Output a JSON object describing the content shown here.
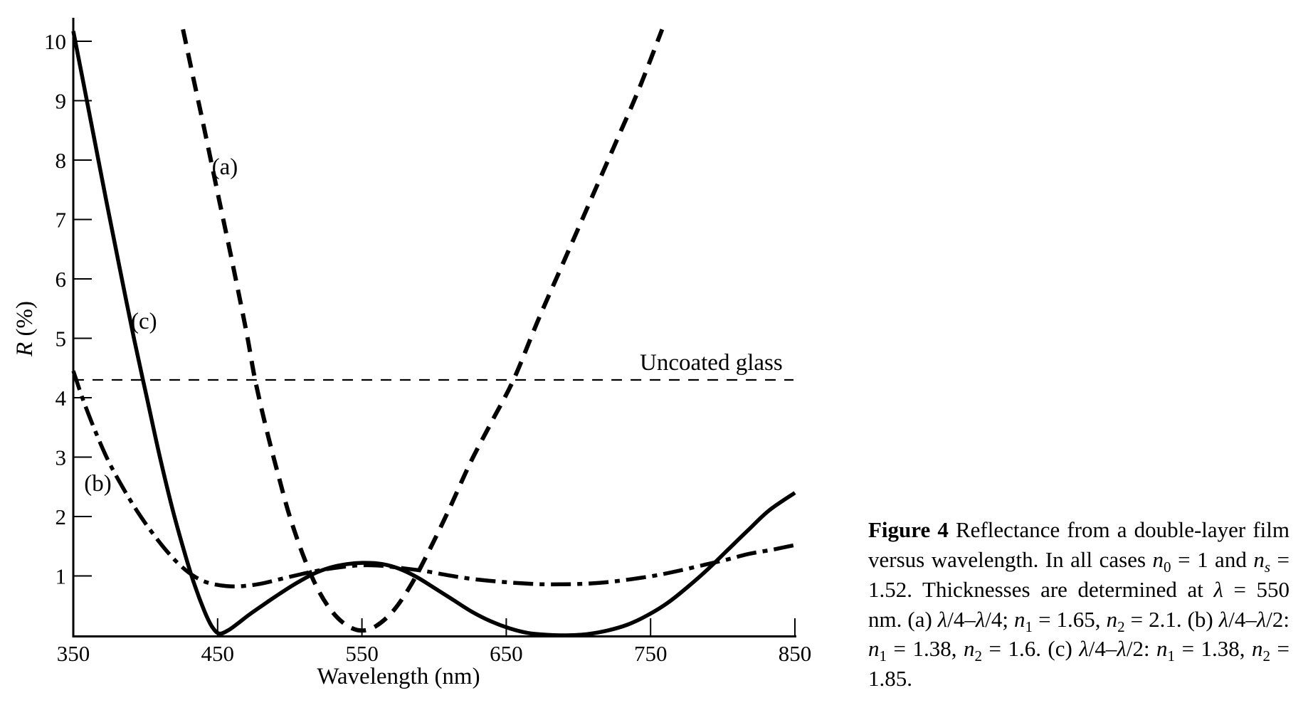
{
  "figure": {
    "caption_segments": [
      {
        "t": "Figure 4",
        "b": 1
      },
      {
        "t": "  Reflectance from a double-layer film versus wavelength. In all cases "
      },
      {
        "t": "n",
        "i": 1
      },
      {
        "t": "0",
        "sub": 1
      },
      {
        "t": " = 1 and "
      },
      {
        "t": "n",
        "i": 1
      },
      {
        "t": "s",
        "sub": 1,
        "i": 1
      },
      {
        "t": " = 1.52. Thicknesses are determined at "
      },
      {
        "t": "λ",
        "i": 1
      },
      {
        "t": " = 550 nm.  (a)  "
      },
      {
        "t": "λ",
        "i": 1
      },
      {
        "t": "/4–"
      },
      {
        "t": "λ",
        "i": 1
      },
      {
        "t": "/4; "
      },
      {
        "t": "n",
        "i": 1
      },
      {
        "t": "1",
        "sub": 1
      },
      {
        "t": " = 1.65, "
      },
      {
        "t": "n",
        "i": 1
      },
      {
        "t": "2",
        "sub": 1
      },
      {
        "t": " = 2.1. (b) "
      },
      {
        "t": "λ",
        "i": 1
      },
      {
        "t": "/4–"
      },
      {
        "t": "λ",
        "i": 1
      },
      {
        "t": "/2: "
      },
      {
        "t": "n",
        "i": 1
      },
      {
        "t": "1",
        "sub": 1
      },
      {
        "t": " = 1.38, "
      },
      {
        "t": "n",
        "i": 1
      },
      {
        "t": "2",
        "sub": 1
      },
      {
        "t": " = 1.6. (c) "
      },
      {
        "t": "λ",
        "i": 1
      },
      {
        "t": "/4–"
      },
      {
        "t": "λ",
        "i": 1
      },
      {
        "t": "/2: "
      },
      {
        "t": "n",
        "i": 1
      },
      {
        "t": "1",
        "sub": 1
      },
      {
        "t": " = 1.38, "
      },
      {
        "t": "n",
        "i": 1
      },
      {
        "t": "2",
        "sub": 1
      },
      {
        "t": " = 1.85."
      }
    ]
  },
  "colors": {
    "ink": "#000000",
    "background": "#ffffff"
  },
  "chart_data": {
    "type": "line",
    "title": "",
    "xlabel": "Wavelength (nm)",
    "ylabel_symbol": "R",
    "ylabel_unit": " (%)",
    "xlim": [
      350,
      850
    ],
    "ylim": [
      0,
      10.4
    ],
    "x_ticks": [
      350,
      450,
      550,
      650,
      750,
      850
    ],
    "y_ticks": [
      1,
      2,
      3,
      4,
      5,
      6,
      7,
      8,
      9,
      10
    ],
    "grid": false,
    "legend_position": "inline-labels",
    "series": [
      {
        "id": "uncoated",
        "name": "Uncoated glass",
        "style": "thin-dashed",
        "width": 2.2,
        "points": [
          [
            350,
            4.3
          ],
          [
            849,
            4.3
          ]
        ]
      },
      {
        "id": "a",
        "name": "(a)",
        "style": "dashed",
        "width": 6,
        "points": [
          [
            426,
            10.2
          ],
          [
            433,
            9.4
          ],
          [
            441,
            8.5
          ],
          [
            450,
            7.45
          ],
          [
            460,
            6.3
          ],
          [
            470,
            5.1
          ],
          [
            476,
            4.3
          ],
          [
            484,
            3.45
          ],
          [
            492,
            2.7
          ],
          [
            500,
            2.0
          ],
          [
            510,
            1.3
          ],
          [
            520,
            0.75
          ],
          [
            530,
            0.38
          ],
          [
            540,
            0.16
          ],
          [
            550,
            0.08
          ],
          [
            560,
            0.16
          ],
          [
            572,
            0.42
          ],
          [
            584,
            0.85
          ],
          [
            596,
            1.4
          ],
          [
            610,
            2.1
          ],
          [
            625,
            2.9
          ],
          [
            640,
            3.6
          ],
          [
            655,
            4.3
          ],
          [
            672,
            5.3
          ],
          [
            690,
            6.3
          ],
          [
            708,
            7.3
          ],
          [
            726,
            8.3
          ],
          [
            742,
            9.2
          ],
          [
            758,
            10.2
          ]
        ]
      },
      {
        "id": "b",
        "name": "(b)",
        "style": "dashdot",
        "width": 5.5,
        "points": [
          [
            350,
            4.45
          ],
          [
            357,
            3.95
          ],
          [
            365,
            3.45
          ],
          [
            374,
            2.95
          ],
          [
            384,
            2.5
          ],
          [
            394,
            2.1
          ],
          [
            404,
            1.75
          ],
          [
            414,
            1.44
          ],
          [
            424,
            1.18
          ],
          [
            434,
            0.99
          ],
          [
            444,
            0.88
          ],
          [
            456,
            0.83
          ],
          [
            468,
            0.83
          ],
          [
            480,
            0.87
          ],
          [
            494,
            0.95
          ],
          [
            508,
            1.03
          ],
          [
            522,
            1.1
          ],
          [
            536,
            1.15
          ],
          [
            550,
            1.18
          ],
          [
            564,
            1.17
          ],
          [
            578,
            1.13
          ],
          [
            594,
            1.08
          ],
          [
            610,
            1.01
          ],
          [
            626,
            0.95
          ],
          [
            642,
            0.91
          ],
          [
            658,
            0.88
          ],
          [
            674,
            0.86
          ],
          [
            690,
            0.86
          ],
          [
            706,
            0.87
          ],
          [
            722,
            0.9
          ],
          [
            738,
            0.95
          ],
          [
            754,
            1.01
          ],
          [
            770,
            1.09
          ],
          [
            786,
            1.18
          ],
          [
            802,
            1.27
          ],
          [
            818,
            1.37
          ],
          [
            834,
            1.44
          ],
          [
            850,
            1.52
          ]
        ]
      },
      {
        "id": "c",
        "name": "(c)",
        "style": "solid",
        "width": 5.5,
        "points": [
          [
            350,
            10.17
          ],
          [
            357,
            9.3
          ],
          [
            365,
            8.3
          ],
          [
            373,
            7.3
          ],
          [
            382,
            6.2
          ],
          [
            392,
            5.0
          ],
          [
            401,
            4.0
          ],
          [
            410,
            3.0
          ],
          [
            419,
            2.1
          ],
          [
            427,
            1.4
          ],
          [
            434,
            0.85
          ],
          [
            441,
            0.4
          ],
          [
            446,
            0.15
          ],
          [
            451,
            0.03
          ],
          [
            457,
            0.08
          ],
          [
            464,
            0.2
          ],
          [
            472,
            0.35
          ],
          [
            482,
            0.52
          ],
          [
            493,
            0.7
          ],
          [
            504,
            0.87
          ],
          [
            516,
            1.03
          ],
          [
            528,
            1.14
          ],
          [
            540,
            1.2
          ],
          [
            552,
            1.22
          ],
          [
            564,
            1.2
          ],
          [
            576,
            1.12
          ],
          [
            588,
            0.98
          ],
          [
            600,
            0.8
          ],
          [
            613,
            0.6
          ],
          [
            626,
            0.4
          ],
          [
            639,
            0.24
          ],
          [
            652,
            0.12
          ],
          [
            665,
            0.04
          ],
          [
            678,
            0.01
          ],
          [
            692,
            0.0
          ],
          [
            706,
            0.02
          ],
          [
            720,
            0.08
          ],
          [
            734,
            0.18
          ],
          [
            748,
            0.34
          ],
          [
            762,
            0.55
          ],
          [
            776,
            0.82
          ],
          [
            790,
            1.12
          ],
          [
            804,
            1.45
          ],
          [
            818,
            1.78
          ],
          [
            832,
            2.1
          ],
          [
            850,
            2.4
          ]
        ]
      }
    ],
    "annotations": [
      {
        "id": "a",
        "text": "(a)",
        "x": 455,
        "y": 7.76
      },
      {
        "id": "b",
        "text": "(b)",
        "x": 367,
        "y": 2.43
      },
      {
        "id": "c",
        "text": "(c)",
        "x": 399,
        "y": 5.16
      },
      {
        "id": "uncoated",
        "text": "Uncoated glass",
        "x": 792,
        "y": 4.47
      }
    ]
  }
}
